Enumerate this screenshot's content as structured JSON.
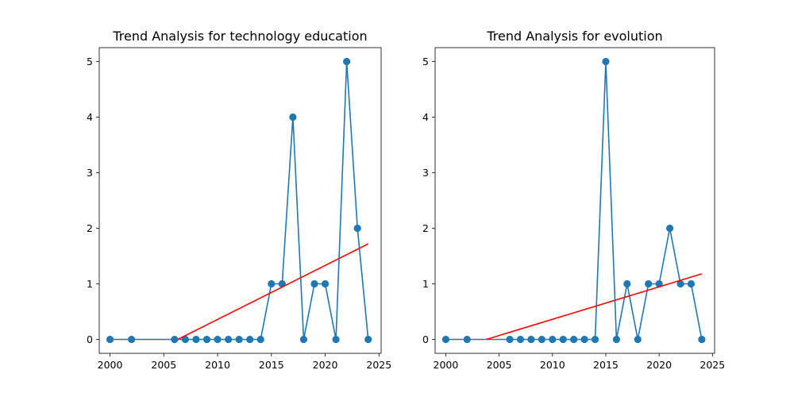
{
  "chart_data": [
    {
      "type": "line",
      "title": "Trend Analysis for technology education",
      "xlabel": "",
      "ylabel": "",
      "xlim": [
        1999.0,
        2025.2
      ],
      "ylim": [
        -0.25,
        5.25
      ],
      "xticks": [
        2000,
        2005,
        2010,
        2015,
        2020,
        2025
      ],
      "yticks": [
        0,
        1,
        2,
        3,
        4,
        5
      ],
      "grid": false,
      "series": [
        {
          "color": "#1f77b4",
          "marker": "circle",
          "x": [
            2000,
            2002,
            2006,
            2007,
            2008,
            2009,
            2010,
            2011,
            2012,
            2013,
            2014,
            2015,
            2016,
            2017,
            2018,
            2019,
            2020,
            2021,
            2022,
            2023,
            2024
          ],
          "y": [
            0,
            0,
            0,
            0,
            0,
            0,
            0,
            0,
            0,
            0,
            0,
            1,
            1,
            4,
            0,
            1,
            1,
            0,
            5,
            2,
            0
          ]
        }
      ],
      "trend": {
        "color": "#ff0000",
        "x": [
          2006.3,
          2024
        ],
        "y": [
          0,
          1.72
        ]
      }
    },
    {
      "type": "line",
      "title": "Trend Analysis for evolution",
      "xlabel": "",
      "ylabel": "",
      "xlim": [
        1999.0,
        2025.2
      ],
      "ylim": [
        -0.25,
        5.25
      ],
      "xticks": [
        2000,
        2005,
        2010,
        2015,
        2020,
        2025
      ],
      "yticks": [
        0,
        1,
        2,
        3,
        4,
        5
      ],
      "grid": false,
      "series": [
        {
          "color": "#1f77b4",
          "marker": "circle",
          "x": [
            2000,
            2002,
            2006,
            2007,
            2008,
            2009,
            2010,
            2011,
            2012,
            2013,
            2014,
            2015,
            2016,
            2017,
            2018,
            2019,
            2020,
            2021,
            2022,
            2023,
            2024
          ],
          "y": [
            0,
            0,
            0,
            0,
            0,
            0,
            0,
            0,
            0,
            0,
            0,
            5,
            0,
            1,
            0,
            1,
            1,
            2,
            1,
            1,
            0
          ]
        }
      ],
      "trend": {
        "color": "#ff0000",
        "x": [
          2003.8,
          2024
        ],
        "y": [
          0,
          1.18
        ]
      }
    }
  ]
}
